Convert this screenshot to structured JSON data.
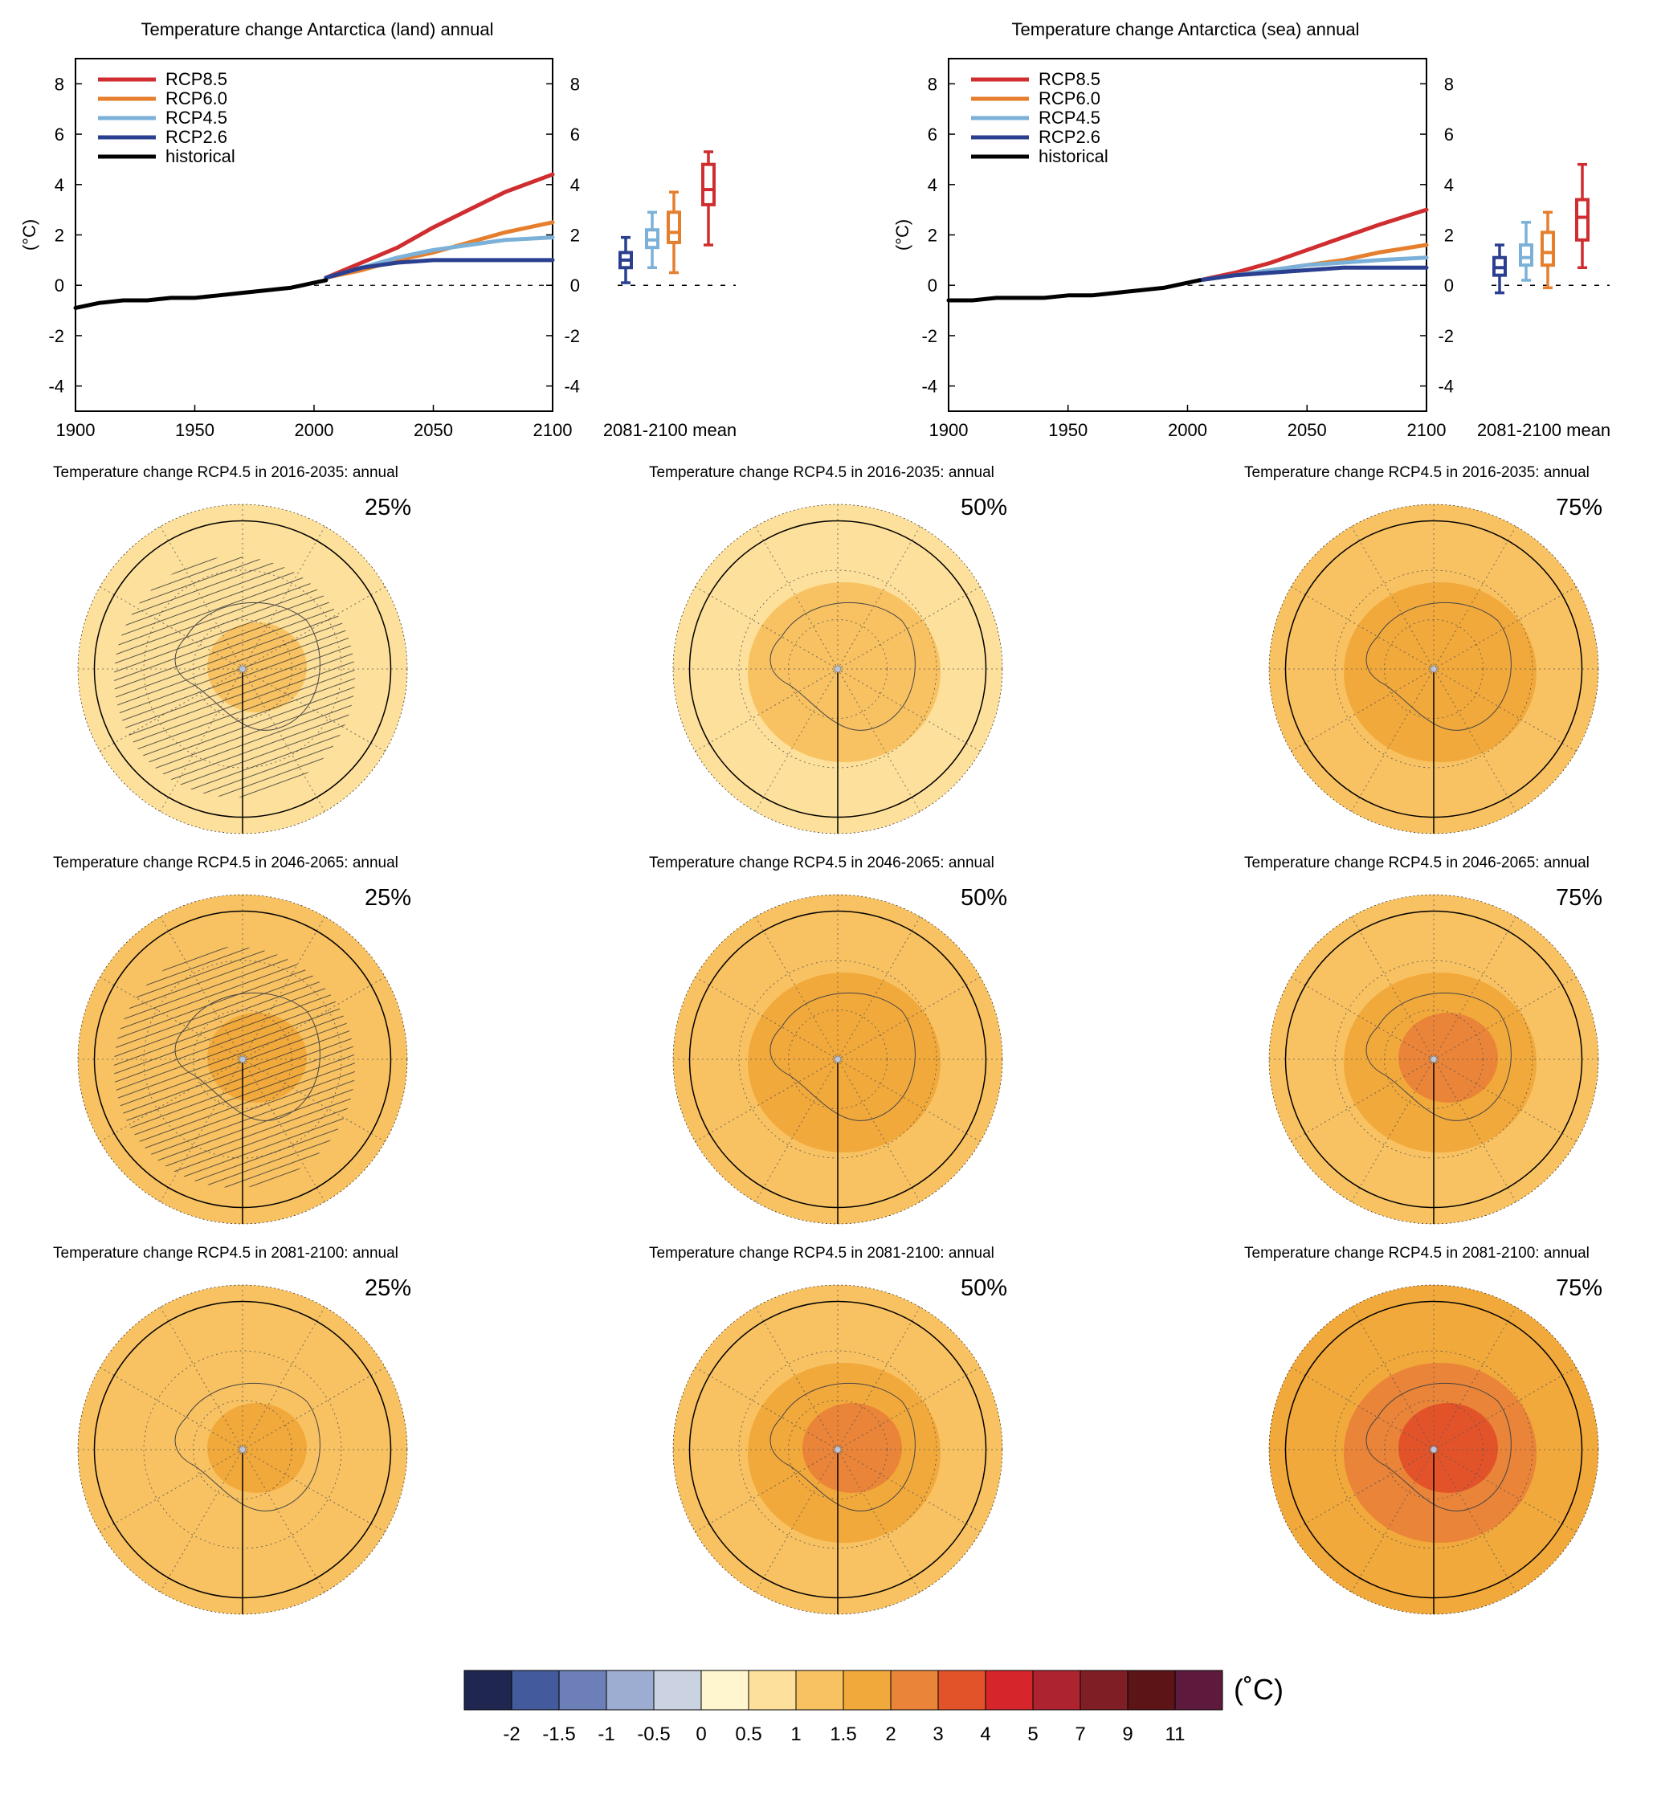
{
  "chart_data": [
    {
      "type": "line",
      "title": "Temperature change Antarctica (land) annual",
      "ylabel": "(°C)",
      "xlim": [
        1900,
        2100
      ],
      "ylim": [
        -5,
        9
      ],
      "x_ticks": [
        "1900",
        "1950",
        "2000",
        "2050",
        "2100"
      ],
      "y_ticks": [
        "-4",
        "-2",
        "0",
        "2",
        "4",
        "6",
        "8"
      ],
      "box_label": "2081-2100 mean",
      "legend_position": "top-left",
      "series": [
        {
          "name": "RCP8.5",
          "color": "#cf2d2f",
          "x": [
            2005,
            2020,
            2035,
            2050,
            2065,
            2080,
            2100
          ],
          "values": [
            0.3,
            0.9,
            1.5,
            2.3,
            3.0,
            3.7,
            4.4
          ]
        },
        {
          "name": "RCP6.0",
          "color": "#e57f2e",
          "x": [
            2005,
            2020,
            2035,
            2050,
            2065,
            2080,
            2100
          ],
          "values": [
            0.3,
            0.6,
            1.0,
            1.3,
            1.7,
            2.1,
            2.5
          ]
        },
        {
          "name": "RCP4.5",
          "color": "#7bb1d8",
          "x": [
            2005,
            2020,
            2035,
            2050,
            2065,
            2080,
            2100
          ],
          "values": [
            0.3,
            0.7,
            1.1,
            1.4,
            1.6,
            1.8,
            1.9
          ]
        },
        {
          "name": "RCP2.6",
          "color": "#2a3f8f",
          "x": [
            2005,
            2020,
            2035,
            2050,
            2065,
            2080,
            2100
          ],
          "values": [
            0.3,
            0.7,
            0.9,
            1.0,
            1.0,
            1.0,
            1.0
          ]
        },
        {
          "name": "historical",
          "color": "#000000",
          "x": [
            1900,
            1910,
            1920,
            1930,
            1940,
            1950,
            1960,
            1970,
            1980,
            1990,
            2000,
            2005
          ],
          "values": [
            -0.9,
            -0.7,
            -0.6,
            -0.6,
            -0.5,
            -0.5,
            -0.4,
            -0.3,
            -0.2,
            -0.1,
            0.1,
            0.2
          ]
        }
      ],
      "boxes": [
        {
          "name": "RCP2.6",
          "color": "#2a3f8f",
          "min": 0.1,
          "q1": 0.7,
          "median": 1.0,
          "q3": 1.3,
          "max": 1.9
        },
        {
          "name": "RCP4.5",
          "color": "#7bb1d8",
          "min": 0.7,
          "q1": 1.5,
          "median": 1.8,
          "q3": 2.2,
          "max": 2.9
        },
        {
          "name": "RCP6.0",
          "color": "#e57f2e",
          "min": 0.5,
          "q1": 1.7,
          "median": 2.1,
          "q3": 2.9,
          "max": 3.7
        },
        {
          "name": "RCP8.5",
          "color": "#cf2d2f",
          "min": 1.6,
          "q1": 3.2,
          "median": 3.8,
          "q3": 4.8,
          "max": 5.3
        }
      ]
    },
    {
      "type": "line",
      "title": "Temperature change Antarctica (sea) annual",
      "ylabel": "(°C)",
      "xlim": [
        1900,
        2100
      ],
      "ylim": [
        -5,
        9
      ],
      "x_ticks": [
        "1900",
        "1950",
        "2000",
        "2050",
        "2100"
      ],
      "y_ticks": [
        "-4",
        "-2",
        "0",
        "2",
        "4",
        "6",
        "8"
      ],
      "box_label": "2081-2100 mean",
      "legend_position": "top-left",
      "series": [
        {
          "name": "RCP8.5",
          "color": "#cf2d2f",
          "x": [
            2005,
            2020,
            2035,
            2050,
            2065,
            2080,
            2100
          ],
          "values": [
            0.2,
            0.5,
            0.9,
            1.4,
            1.9,
            2.4,
            3.0
          ]
        },
        {
          "name": "RCP6.0",
          "color": "#e57f2e",
          "x": [
            2005,
            2020,
            2035,
            2050,
            2065,
            2080,
            2100
          ],
          "values": [
            0.2,
            0.4,
            0.6,
            0.8,
            1.0,
            1.3,
            1.6
          ]
        },
        {
          "name": "RCP4.5",
          "color": "#7bb1d8",
          "x": [
            2005,
            2020,
            2035,
            2050,
            2065,
            2080,
            2100
          ],
          "values": [
            0.2,
            0.4,
            0.6,
            0.8,
            0.9,
            1.0,
            1.1
          ]
        },
        {
          "name": "RCP2.6",
          "color": "#2a3f8f",
          "x": [
            2005,
            2020,
            2035,
            2050,
            2065,
            2080,
            2100
          ],
          "values": [
            0.2,
            0.4,
            0.5,
            0.6,
            0.7,
            0.7,
            0.7
          ]
        },
        {
          "name": "historical",
          "color": "#000000",
          "x": [
            1900,
            1910,
            1920,
            1930,
            1940,
            1950,
            1960,
            1970,
            1980,
            1990,
            2000,
            2005
          ],
          "values": [
            -0.6,
            -0.6,
            -0.5,
            -0.5,
            -0.5,
            -0.4,
            -0.4,
            -0.3,
            -0.2,
            -0.1,
            0.1,
            0.2
          ]
        }
      ],
      "boxes": [
        {
          "name": "RCP2.6",
          "color": "#2a3f8f",
          "min": -0.3,
          "q1": 0.4,
          "median": 0.7,
          "q3": 1.1,
          "max": 1.6
        },
        {
          "name": "RCP4.5",
          "color": "#7bb1d8",
          "min": 0.2,
          "q1": 0.8,
          "median": 1.1,
          "q3": 1.6,
          "max": 2.5
        },
        {
          "name": "RCP6.0",
          "color": "#e57f2e",
          "min": -0.1,
          "q1": 0.8,
          "median": 1.3,
          "q3": 2.1,
          "max": 2.9
        },
        {
          "name": "RCP8.5",
          "color": "#cf2d2f",
          "min": 0.7,
          "q1": 1.8,
          "median": 2.7,
          "q3": 3.4,
          "max": 4.8
        }
      ]
    },
    {
      "type": "heatmap",
      "subtype": "polar-maps",
      "maps": [
        {
          "title": "Temperature change RCP4.5 in 2016-2035: annual",
          "percentile": "25%",
          "outer": 0.5,
          "land": 0.5,
          "center": 1.0,
          "hatched": true
        },
        {
          "title": "Temperature change RCP4.5 in 2016-2035: annual",
          "percentile": "50%",
          "outer": 0.5,
          "land": 1.0,
          "center": 1.0,
          "hatched": false
        },
        {
          "title": "Temperature change RCP4.5 in 2016-2035: annual",
          "percentile": "75%",
          "outer": 1.0,
          "land": 1.5,
          "center": 1.5,
          "hatched": false
        },
        {
          "title": "Temperature change RCP4.5 in 2046-2065: annual",
          "percentile": "25%",
          "outer": 1.0,
          "land": 1.0,
          "center": 1.5,
          "hatched": true
        },
        {
          "title": "Temperature change RCP4.5 in 2046-2065: annual",
          "percentile": "50%",
          "outer": 1.0,
          "land": 1.5,
          "center": 1.5,
          "hatched": false
        },
        {
          "title": "Temperature change RCP4.5 in 2046-2065: annual",
          "percentile": "75%",
          "outer": 1.0,
          "land": 1.5,
          "center": 2.0,
          "hatched": false
        },
        {
          "title": "Temperature change RCP4.5 in 2081-2100: annual",
          "percentile": "25%",
          "outer": 1.0,
          "land": 1.0,
          "center": 1.5,
          "hatched": false
        },
        {
          "title": "Temperature change RCP4.5 in 2081-2100: annual",
          "percentile": "50%",
          "outer": 1.0,
          "land": 1.5,
          "center": 2.0,
          "hatched": false
        },
        {
          "title": "Temperature change RCP4.5 in 2081-2100: annual",
          "percentile": "75%",
          "outer": 1.5,
          "land": 2.0,
          "center": 3.0,
          "hatched": false
        }
      ]
    }
  ],
  "colorbar": {
    "unit": "(˚C)",
    "labels": [
      "-2",
      "-1.5",
      "-1",
      "-0.5",
      "0",
      "0.5",
      "1",
      "1.5",
      "2",
      "3",
      "4",
      "5",
      "7",
      "9",
      "11"
    ],
    "colors": [
      "#1f2650",
      "#435b9c",
      "#6c80b7",
      "#9dadd2",
      "#cbd3e2",
      "#fff6cf",
      "#fde09b",
      "#f8c262",
      "#f2a93b",
      "#ea8438",
      "#e2532a",
      "#d6262b",
      "#ad2330",
      "#7f1e25",
      "#5c1417",
      "#5e1a3d"
    ]
  }
}
